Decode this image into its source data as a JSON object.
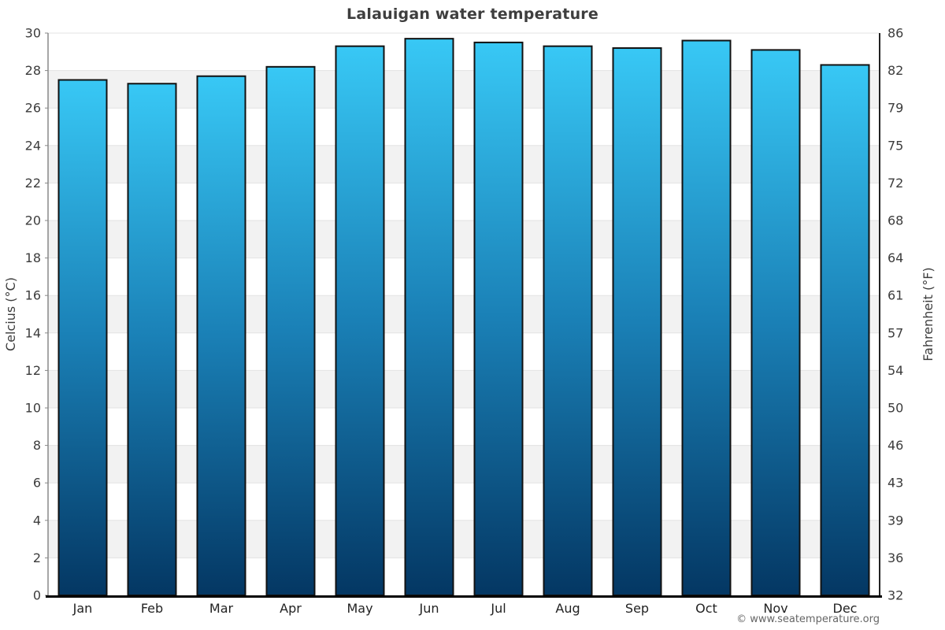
{
  "page": {
    "title": "Lalauigan water temperature",
    "footer": "© www.seatemperature.org"
  },
  "chart_data": {
    "type": "bar",
    "title": "Lalauigan water temperature",
    "categories": [
      "Jan",
      "Feb",
      "Mar",
      "Apr",
      "May",
      "Jun",
      "Jul",
      "Aug",
      "Sep",
      "Oct",
      "Nov",
      "Dec"
    ],
    "values": [
      27.5,
      27.3,
      27.7,
      28.2,
      29.3,
      29.7,
      29.5,
      29.3,
      29.2,
      29.6,
      29.1,
      28.3
    ],
    "unit": "°C",
    "ylabel_left": "Celcius (°C)",
    "ylabel_right": "Fahrenheit (°F)",
    "ylim": [
      0,
      30
    ],
    "celsius_ticks": [
      0,
      2,
      4,
      6,
      8,
      10,
      12,
      14,
      16,
      18,
      20,
      22,
      24,
      26,
      28,
      30
    ],
    "fahrenheit_tick_labels": [
      "32",
      "36",
      "39",
      "43",
      "46",
      "50",
      "54",
      "57",
      "61",
      "64",
      "68",
      "72",
      "75",
      "79",
      "82",
      "86"
    ],
    "grid": true,
    "legend": "none",
    "colors": {
      "bar_gradient_top": "#38c8f5",
      "bar_gradient_mid": "#1a80b6",
      "bar_gradient_bottom": "#043763",
      "bar_stroke": "#111111",
      "band_stripe": "#f2f2f2",
      "gridline": "#e3e3e3",
      "axis_left": "#888888",
      "axis_right": "#222222",
      "axis_bottom": "#000000",
      "tick_label_color": "#3c3c3c",
      "month_label_color": "#222222"
    }
  }
}
